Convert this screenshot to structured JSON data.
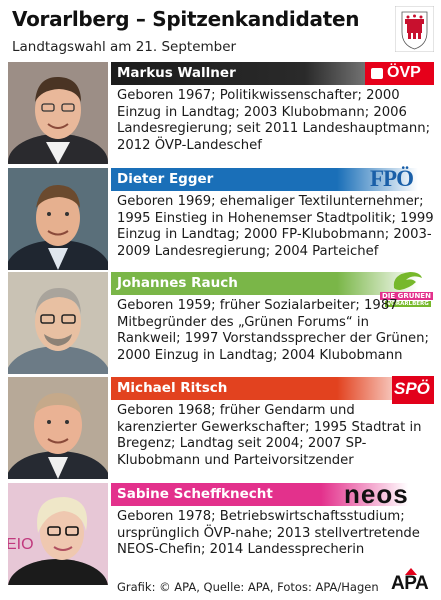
{
  "header": {
    "title": "Vorarlberg – Spitzenkandidaten",
    "subtitle": "Landtagswahl am 21. September"
  },
  "candidates": [
    {
      "name": "Markus Wallner",
      "bio": "Geboren 1967; Politikwissenschafter; 2000 Einzug in Landtag; 2003 Klubobmann; 2006 Landesregierung; seit 2011 Landeshauptmann; 2012 ÖVP-Landeschef",
      "party_logo": "ÖVP",
      "bar_color": "#1c1c1c"
    },
    {
      "name": "Dieter Egger",
      "bio": "Geboren 1969; ehemaliger Textilunternehmer; 1995 Einstieg in Hohenemser Stadtpolitik; 1999 Einzug in Landtag; 2000 FP-Klubobmann; 2003-2009 Landesregierung; 2004 Parteichef",
      "party_logo": "FPÖ",
      "bar_color": "#1a6fb8"
    },
    {
      "name": "Johannes Rauch",
      "bio": "Geboren 1959; früher Sozialarbeiter; 1987 Mitbegründer des „Grünen Forums“ in Rankweil; 1997 Vorstandssprecher der Grünen; 2000 Einzug in Landtag; 2004 Klubobmann",
      "party_logo": "DIE GRÜNEN",
      "party_logo_sub": "VORARLBERG",
      "bar_color": "#7ab648"
    },
    {
      "name": "Michael Ritsch",
      "bio": "Geboren 1968; früher Gendarm und karenzierter Gewerkschafter; 1995 Stadtrat in Bregenz; Landtag seit 2004; 2007 SP-Klubobmann und Parteivorsitzender",
      "party_logo": "SPÖ",
      "bar_color": "#e2421f"
    },
    {
      "name": "Sabine Scheffknecht",
      "bio": "Geboren 1978; Betriebswirtschaftsstudium; ursprünglich ÖVP-nahe; 2013 stellvertretende NEOS-Chefin; 2014 Landessprecherin",
      "party_logo": "neos",
      "bar_color": "#e3318c"
    }
  ],
  "footer": {
    "credit": "Grafik: © APA, Quelle: APA, Fotos: APA/Hagen",
    "logo": "APA"
  },
  "icons": {
    "crest": "vorarlberg-coat-of-arms-icon"
  }
}
